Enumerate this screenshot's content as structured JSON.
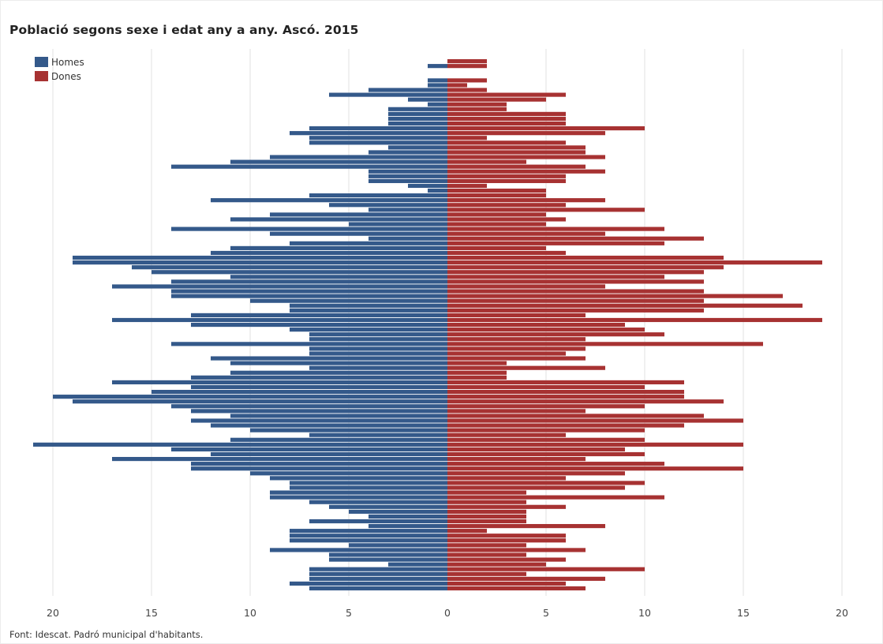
{
  "chart_data": {
    "type": "bar",
    "orientation": "horizontal",
    "subtype": "population-pyramid",
    "title": "Població segons sexe i edat any a any. Ascó. 2015",
    "source": "Font: Idescat. Padró municipal d'habitants.",
    "x_ticks": [
      "20",
      "15",
      "10",
      "5",
      "0",
      "5",
      "10",
      "15",
      "20"
    ],
    "xlim": [
      -20,
      20
    ],
    "grid": true,
    "legend_position": "top-left",
    "colors": {
      "Homes": "#34598a",
      "Dones": "#a73232"
    },
    "order": "oldest age at top, age 0 at bottom",
    "series": [
      {
        "name": "Homes",
        "values": [
          0,
          1,
          0,
          0,
          1,
          1,
          4,
          6,
          2,
          1,
          3,
          3,
          3,
          3,
          7,
          8,
          7,
          7,
          3,
          4,
          9,
          11,
          14,
          4,
          4,
          4,
          2,
          1,
          7,
          12,
          6,
          4,
          9,
          11,
          5,
          14,
          9,
          4,
          8,
          11,
          12,
          19,
          19,
          16,
          15,
          11,
          14,
          17,
          14,
          14,
          10,
          8,
          8,
          13,
          17,
          13,
          8,
          7,
          7,
          14,
          7,
          7,
          12,
          11,
          7,
          11,
          13,
          17,
          13,
          15,
          20,
          19,
          14,
          13,
          11,
          13,
          12,
          10,
          7,
          11,
          21,
          14,
          12,
          17,
          13,
          13,
          10,
          9,
          8,
          8,
          9,
          9,
          7,
          6,
          5,
          4,
          7,
          4,
          8,
          8,
          8,
          5,
          9,
          6,
          6,
          3,
          7,
          7,
          7,
          8,
          7
        ]
      },
      {
        "name": "Dones",
        "values": [
          2,
          2,
          0,
          0,
          2,
          1,
          2,
          6,
          5,
          3,
          3,
          6,
          6,
          6,
          10,
          8,
          2,
          6,
          7,
          7,
          8,
          4,
          7,
          8,
          6,
          6,
          2,
          5,
          5,
          8,
          6,
          10,
          5,
          6,
          5,
          11,
          8,
          13,
          11,
          5,
          6,
          14,
          19,
          14,
          13,
          11,
          13,
          8,
          13,
          17,
          13,
          18,
          13,
          7,
          19,
          9,
          10,
          11,
          7,
          16,
          7,
          6,
          7,
          3,
          8,
          3,
          3,
          12,
          10,
          12,
          12,
          14,
          10,
          7,
          13,
          15,
          12,
          10,
          6,
          10,
          15,
          9,
          10,
          7,
          11,
          15,
          9,
          6,
          10,
          9,
          4,
          11,
          4,
          6,
          4,
          4,
          4,
          8,
          2,
          6,
          6,
          4,
          7,
          4,
          6,
          5,
          10,
          4,
          8,
          6,
          7
        ]
      }
    ]
  }
}
